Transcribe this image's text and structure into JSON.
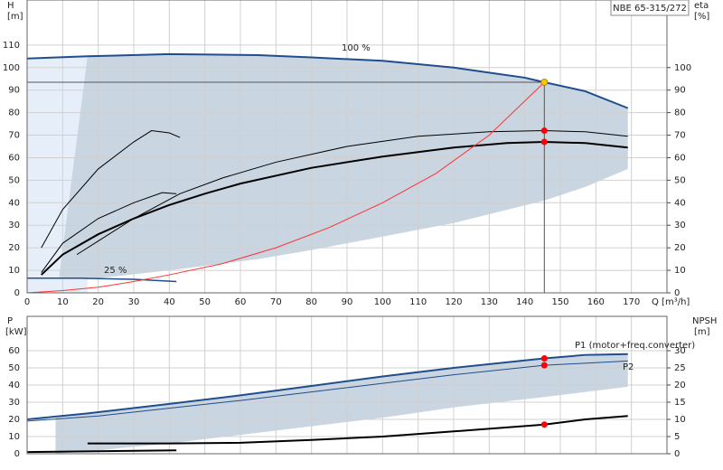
{
  "chart_data": [
    {
      "type": "line",
      "title": "NBE 65-315/272",
      "y_label": "H",
      "y_unit": "[m]",
      "y2_label": "eta",
      "y2_unit": "[%]",
      "x_label": "Q [m³/h]",
      "xlim": [
        0,
        180
      ],
      "xticks": [
        0,
        10,
        20,
        30,
        40,
        50,
        60,
        70,
        80,
        90,
        100,
        110,
        120,
        130,
        140,
        150,
        160,
        170
      ],
      "ylim": [
        0,
        130
      ],
      "yticks": [
        0,
        10,
        20,
        30,
        40,
        50,
        60,
        70,
        80,
        90,
        100,
        110
      ],
      "y2lim": [
        0,
        130
      ],
      "y2ticks": [
        0,
        10,
        20,
        30,
        40,
        50,
        60,
        70,
        80,
        90,
        100
      ],
      "grid": true,
      "areas": [
        {
          "color": "#e6eff9",
          "x": [
            0,
            17
          ],
          "upper": [
            104,
            105
          ],
          "lower": [
            0,
            0
          ]
        },
        {
          "color": "#c9d5e1",
          "x": [
            9,
            17,
            40,
            65,
            80,
            100,
            120,
            145.5,
            157,
            169
          ],
          "upper": [
            7,
            105,
            106,
            105.5,
            104.5,
            103,
            100,
            93.5,
            89.5,
            82
          ],
          "lower": [
            7,
            6,
            10,
            15,
            19,
            25,
            31,
            41,
            47,
            55
          ]
        }
      ],
      "series": [
        {
          "color": "#1f4e8c",
          "width": 2,
          "x": [
            0,
            17,
            40,
            65,
            80,
            100,
            120,
            140,
            145.5,
            157,
            169
          ],
          "values": [
            104,
            105,
            106,
            105.5,
            104.5,
            103,
            100,
            95.5,
            93.5,
            89.5,
            82
          ]
        },
        {
          "color": "#1f4e8c",
          "width": 1.5,
          "x": [
            0,
            15,
            30,
            42
          ],
          "values": [
            6.5,
            6.5,
            6,
            5
          ]
        },
        {
          "color": "#000000",
          "width": 2,
          "x": [
            4,
            10,
            20,
            30,
            40,
            50,
            60,
            80,
            100,
            120,
            135,
            145.5,
            157,
            169
          ],
          "values": [
            8,
            17,
            26,
            33,
            39,
            44,
            48.5,
            55.5,
            60.5,
            64.5,
            66.5,
            67,
            66.5,
            64.5
          ]
        },
        {
          "color": "#000000",
          "width": 1,
          "x": [
            14,
            20,
            30,
            43,
            55,
            70,
            90,
            110,
            130,
            145.5,
            157,
            169
          ],
          "values": [
            17,
            23,
            33,
            44,
            51,
            58,
            65,
            69.5,
            71.5,
            72,
            71.5,
            69.5
          ]
        },
        {
          "color": "#000000",
          "width": 1,
          "x": [
            4,
            10,
            20,
            30,
            35,
            40,
            43
          ],
          "values": [
            20,
            37,
            55,
            67,
            72,
            71,
            69
          ]
        },
        {
          "color": "#000000",
          "width": 1,
          "x": [
            4,
            10,
            20,
            30,
            38,
            42
          ],
          "values": [
            9,
            22,
            33,
            40,
            44.5,
            44
          ]
        },
        {
          "color": "#ff3333",
          "width": 1,
          "x": [
            0,
            10,
            20,
            30,
            40,
            55,
            70,
            85,
            100,
            115,
            130,
            145.5
          ],
          "values": [
            0,
            1,
            2.5,
            5,
            8,
            13,
            20,
            29,
            40,
            53,
            70,
            93.5
          ]
        }
      ],
      "points": [
        {
          "color": "#ffcc00",
          "x": 145.5,
          "y": 93.5
        },
        {
          "color": "#ff0000",
          "x": 145.5,
          "y": 72
        },
        {
          "color": "#ff0000",
          "x": 145.5,
          "y": 67
        }
      ],
      "annotations": [
        "100 %",
        "25 %"
      ]
    },
    {
      "type": "line",
      "y_label": "P",
      "y_unit": "[kW]",
      "y2_label": "NPSH",
      "y2_unit": "[m]",
      "xlim": [
        0,
        180
      ],
      "xticks": [
        0,
        10,
        20,
        30,
        40,
        50,
        60,
        70,
        80,
        90,
        100,
        110,
        120,
        130,
        140,
        150,
        160,
        170
      ],
      "ylim": [
        0,
        80
      ],
      "yticks": [
        0,
        10,
        20,
        30,
        40,
        50,
        60
      ],
      "y2lim": [
        0,
        40
      ],
      "y2ticks": [
        0,
        5,
        10,
        15,
        20,
        25,
        30
      ],
      "grid": true,
      "areas": [
        {
          "color": "#c9d5e1",
          "x": [
            8,
            20,
            40,
            60,
            80,
            100,
            120,
            145.5,
            169
          ],
          "upper": [
            21,
            24,
            29,
            34,
            39.5,
            45,
            50,
            55.5,
            58
          ],
          "lower": [
            0,
            2,
            6,
            11,
            16,
            21,
            27,
            33,
            39
          ]
        }
      ],
      "series": [
        {
          "color": "#1f4e8c",
          "width": 2,
          "x": [
            0,
            17,
            40,
            60,
            80,
            100,
            120,
            145.5,
            157,
            169
          ],
          "values": [
            20,
            23.5,
            29,
            34,
            39.5,
            45,
            50,
            55.5,
            57.5,
            58
          ]
        },
        {
          "color": "#1f4e8c",
          "width": 1,
          "x": [
            0,
            20,
            40,
            60,
            80,
            100,
            120,
            145.5,
            169
          ],
          "values": [
            19,
            22,
            26.5,
            31,
            36,
            41,
            46,
            51.5,
            54
          ]
        },
        {
          "color": "#000000",
          "width": 2,
          "axis": "y2",
          "x": [
            17,
            40,
            60,
            80,
            100,
            120,
            145.5,
            157,
            169
          ],
          "values": [
            3,
            3,
            3.2,
            4,
            5,
            6.5,
            8.5,
            10,
            11
          ]
        },
        {
          "color": "#000000",
          "width": 2,
          "axis": "y2",
          "x": [
            0,
            42
          ],
          "values": [
            0.5,
            1
          ]
        }
      ],
      "points": [
        {
          "color": "#ff0000",
          "x": 145.5,
          "y": 55.5
        },
        {
          "color": "#ff0000",
          "x": 145.5,
          "y": 51.5
        },
        {
          "color": "#ff0000",
          "x": 145.5,
          "y": 8.5,
          "axis": "y2"
        }
      ],
      "annotations": [
        "P1 (motor+freq.converter)",
        "P2"
      ]
    }
  ]
}
